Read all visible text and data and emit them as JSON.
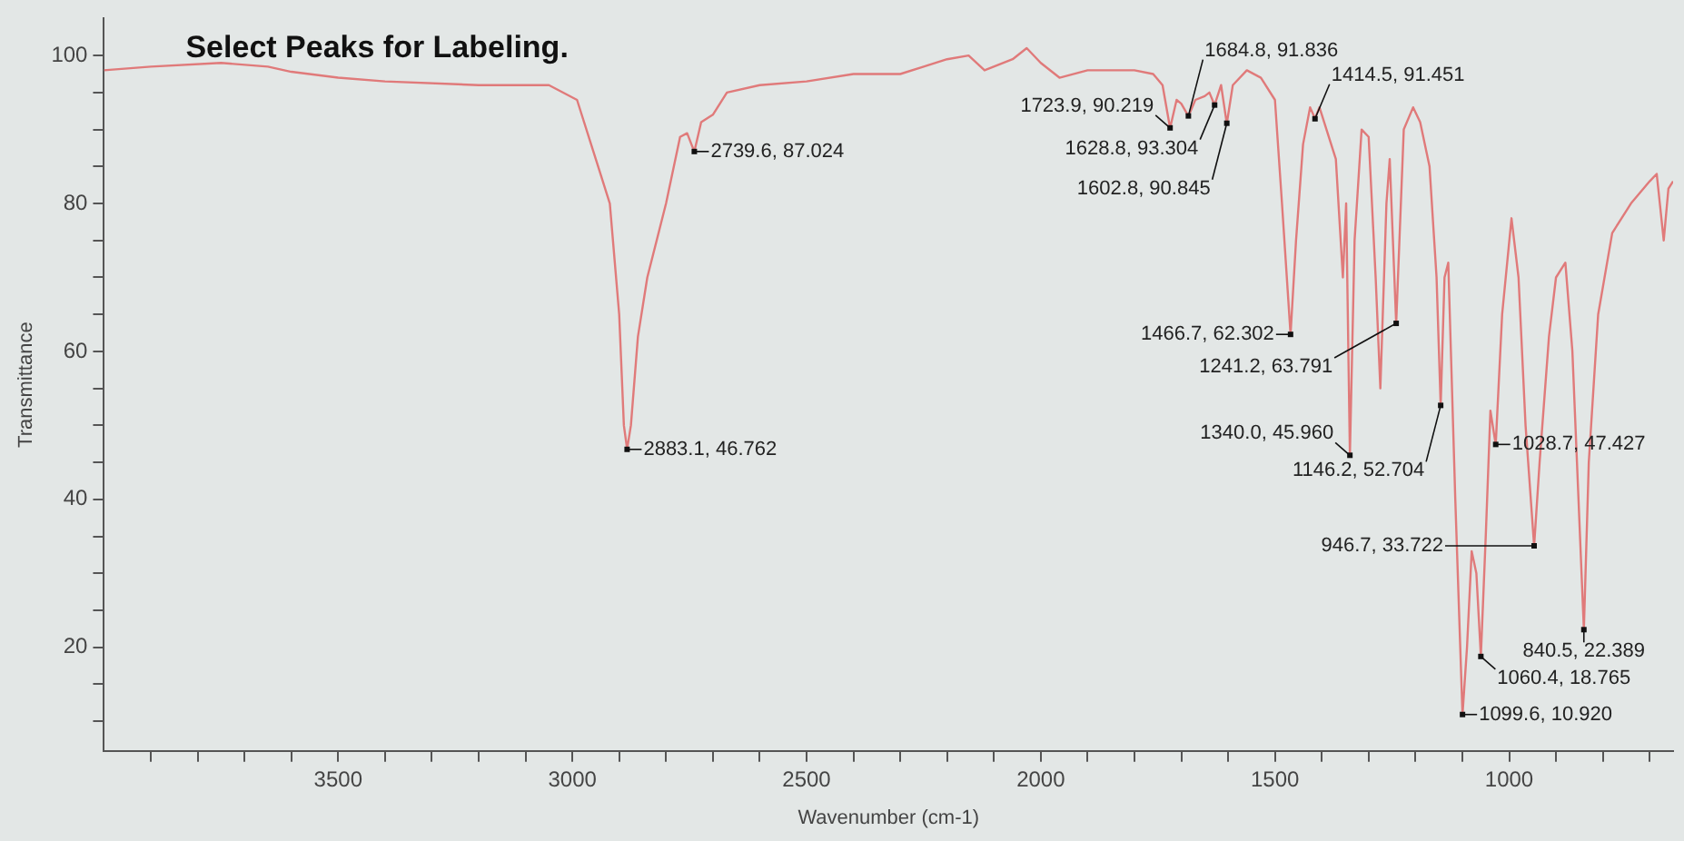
{
  "chart_data": {
    "type": "line",
    "title": "Select Peaks for Labeling.",
    "xlabel": "Wavenumber (cm-1)",
    "ylabel": "Transmittance",
    "xlim": [
      4000,
      650
    ],
    "ylim": [
      6,
      105
    ],
    "xticks": [
      {
        "value": 3900,
        "label": null
      },
      {
        "value": 3800,
        "label": null
      },
      {
        "value": 3700,
        "label": null
      },
      {
        "value": 3600,
        "label": null
      },
      3500,
      {
        "value": 3400,
        "label": null
      },
      {
        "value": 3300,
        "label": null
      },
      {
        "value": 3200,
        "label": null
      },
      {
        "value": 3100,
        "label": null
      },
      3000,
      {
        "value": 2900,
        "label": null
      },
      {
        "value": 2800,
        "label": null
      },
      {
        "value": 2700,
        "label": null
      },
      {
        "value": 2600,
        "label": null
      },
      2500,
      {
        "value": 2400,
        "label": null
      },
      {
        "value": 2300,
        "label": null
      },
      {
        "value": 2200,
        "label": null
      },
      {
        "value": 2100,
        "label": null
      },
      2000,
      {
        "value": 1900,
        "label": null
      },
      {
        "value": 1800,
        "label": null
      },
      {
        "value": 1700,
        "label": null
      },
      {
        "value": 1600,
        "label": null
      },
      1500,
      {
        "value": 1400,
        "label": null
      },
      {
        "value": 1300,
        "label": null
      },
      {
        "value": 1200,
        "label": null
      },
      {
        "value": 1100,
        "label": null
      },
      1000,
      {
        "value": 900,
        "label": null
      },
      {
        "value": 800,
        "label": null
      },
      {
        "value": 700,
        "label": null
      }
    ],
    "yticks": [
      {
        "value": 10,
        "label": null
      },
      {
        "value": 15,
        "label": null
      },
      20,
      {
        "value": 25,
        "label": null
      },
      {
        "value": 30,
        "label": null
      },
      {
        "value": 35,
        "label": null
      },
      40,
      {
        "value": 45,
        "label": null
      },
      {
        "value": 50,
        "label": null
      },
      {
        "value": 55,
        "label": null
      },
      60,
      {
        "value": 65,
        "label": null
      },
      {
        "value": 70,
        "label": null
      },
      {
        "value": 75,
        "label": null
      },
      80,
      {
        "value": 85,
        "label": null
      },
      {
        "value": 90,
        "label": null
      },
      {
        "value": 95,
        "label": null
      },
      100
    ],
    "grid": false,
    "legend": false,
    "marker": "none",
    "line_style": "solid",
    "series": [
      {
        "color": "#e07a7a",
        "x": [
          4000,
          3900,
          3750,
          3650,
          3600,
          3500,
          3400,
          3200,
          3050,
          2990,
          2960,
          2940,
          2920,
          2900,
          2890,
          2883.1,
          2875,
          2860,
          2840,
          2800,
          2770,
          2755,
          2739.6,
          2725,
          2700,
          2670,
          2600,
          2500,
          2400,
          2300,
          2250,
          2200,
          2154,
          2120,
          2060,
          2030,
          2000,
          1960,
          1900,
          1800,
          1760,
          1740,
          1723.9,
          1710,
          1700,
          1684.8,
          1670,
          1650,
          1640,
          1628.8,
          1615,
          1602.8,
          1590,
          1560,
          1530,
          1500,
          1485,
          1466.7,
          1455,
          1440,
          1425,
          1414.5,
          1405,
          1390,
          1370,
          1355,
          1348,
          1340,
          1330,
          1315,
          1300,
          1285,
          1275,
          1262,
          1255,
          1241.2,
          1225,
          1205,
          1190,
          1170,
          1155,
          1146.2,
          1138,
          1130,
          1115,
          1099.6,
          1090,
          1080,
          1070,
          1060.4,
          1050,
          1040,
          1028.7,
          1015,
          995,
          980,
          965,
          946.7,
          935,
          915,
          900,
          880,
          865,
          840.5,
          830,
          810,
          780,
          740,
          700,
          685,
          670,
          660,
          650
        ],
        "values": [
          98,
          98.5,
          99,
          98.5,
          97.8,
          97,
          96.5,
          96,
          96,
          94,
          88,
          84,
          80,
          65,
          50,
          46.8,
          50,
          62,
          70,
          80,
          89,
          89.5,
          87,
          91,
          92,
          95,
          96,
          96.5,
          97.5,
          97.5,
          98.5,
          99.5,
          100,
          98,
          99.5,
          101,
          99,
          97,
          98,
          98,
          97.5,
          96,
          90.2,
          94,
          93.5,
          91.8,
          94,
          94.5,
          95,
          93.3,
          96,
          90.8,
          96,
          98,
          97,
          94,
          80,
          62.3,
          75,
          88,
          93,
          91.5,
          93,
          90,
          86,
          70,
          80,
          46,
          75,
          90,
          89,
          70,
          55,
          80,
          86,
          63.8,
          90,
          93,
          91,
          85,
          70,
          52.7,
          70,
          72,
          40,
          10.9,
          20,
          33,
          30,
          18.8,
          35,
          52,
          47.4,
          65,
          78,
          70,
          50,
          33.7,
          45,
          62,
          70,
          72,
          60,
          22.4,
          45,
          65,
          76,
          80,
          83,
          84,
          75,
          82,
          83
        ]
      }
    ],
    "annotations": [
      {
        "text": "2883.1, 46.762",
        "x": 2883.1,
        "y": 46.762
      },
      {
        "text": "2739.6, 87.024",
        "x": 2739.6,
        "y": 87.024
      },
      {
        "text": "1628.8, 93.304",
        "x": 1628.8,
        "y": 93.304
      },
      {
        "text": "1684.8, 91.836",
        "x": 1684.8,
        "y": 91.836
      },
      {
        "text": "1723.9, 90.219",
        "x": 1723.9,
        "y": 90.219
      },
      {
        "text": "1602.8, 90.845",
        "x": 1602.8,
        "y": 90.845
      },
      {
        "text": "1414.5, 91.451",
        "x": 1414.5,
        "y": 91.451
      },
      {
        "text": "1466.7, 62.302",
        "x": 1466.7,
        "y": 62.302
      },
      {
        "text": "1241.2, 63.791",
        "x": 1241.2,
        "y": 63.791
      },
      {
        "text": "1146.2, 52.704",
        "x": 1146.2,
        "y": 52.704
      },
      {
        "text": "1340.0, 45.960",
        "x": 1340.0,
        "y": 45.96
      },
      {
        "text": "1028.7, 47.427",
        "x": 1028.7,
        "y": 47.427
      },
      {
        "text": "946.7, 33.722",
        "x": 946.7,
        "y": 33.722
      },
      {
        "text": "840.5, 22.389",
        "x": 840.5,
        "y": 22.389
      },
      {
        "text": "1060.4, 18.765",
        "x": 1060.4,
        "y": 18.765
      },
      {
        "text": "1099.6, 10.920",
        "x": 1099.6,
        "y": 10.92
      }
    ]
  }
}
